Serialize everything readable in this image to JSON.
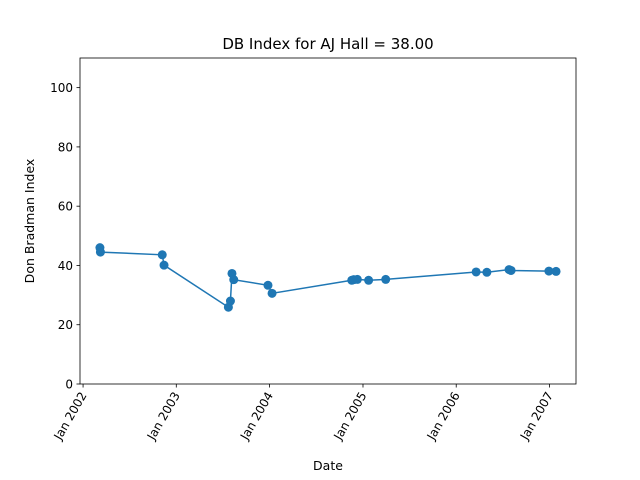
{
  "chart_data": {
    "type": "line",
    "title": "DB Index for AJ Hall = 38.00",
    "xlabel": "Date",
    "ylabel": "Don Bradman Index",
    "ylim": [
      0,
      110
    ],
    "xlim": [
      "2001-12-20",
      "2007-04-15"
    ],
    "grid": false,
    "x_ticks": [
      {
        "date": "2002-01-01",
        "label": "Jan 2002"
      },
      {
        "date": "2003-01-01",
        "label": "Jan 2003"
      },
      {
        "date": "2004-01-01",
        "label": "Jan 2004"
      },
      {
        "date": "2005-01-01",
        "label": "Jan 2005"
      },
      {
        "date": "2006-01-01",
        "label": "Jan 2006"
      },
      {
        "date": "2007-01-01",
        "label": "Jan 2007"
      }
    ],
    "y_ticks": [
      0,
      20,
      40,
      60,
      80,
      100
    ],
    "series": [
      {
        "color": "#1f77b4",
        "points": [
          {
            "x": "2002-03-08",
            "y": 46.0
          },
          {
            "x": "2002-03-10",
            "y": 44.5
          },
          {
            "x": "2002-11-07",
            "y": 43.6
          },
          {
            "x": "2002-11-14",
            "y": 40.1
          },
          {
            "x": "2003-07-24",
            "y": 25.9
          },
          {
            "x": "2003-08-01",
            "y": 28.0
          },
          {
            "x": "2003-08-07",
            "y": 37.3
          },
          {
            "x": "2003-08-14",
            "y": 35.2
          },
          {
            "x": "2003-12-26",
            "y": 33.3
          },
          {
            "x": "2004-01-11",
            "y": 30.6
          },
          {
            "x": "2004-11-18",
            "y": 35.0
          },
          {
            "x": "2004-11-26",
            "y": 35.2
          },
          {
            "x": "2004-12-10",
            "y": 35.3
          },
          {
            "x": "2005-01-23",
            "y": 35.0
          },
          {
            "x": "2005-03-31",
            "y": 35.3
          },
          {
            "x": "2006-03-20",
            "y": 37.8
          },
          {
            "x": "2006-05-01",
            "y": 37.7
          },
          {
            "x": "2006-07-27",
            "y": 38.6
          },
          {
            "x": "2006-08-04",
            "y": 38.3
          },
          {
            "x": "2006-12-30",
            "y": 38.1
          },
          {
            "x": "2007-01-27",
            "y": 38.0
          }
        ]
      }
    ]
  }
}
